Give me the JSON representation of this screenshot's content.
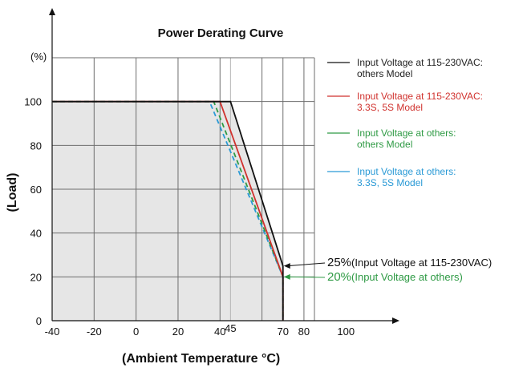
{
  "chart_data": {
    "type": "line",
    "title": "Power Derating Curve",
    "xlabel": "(Ambient Temperature ℃)",
    "xlabel_main": "(Ambient Temperature ",
    "xlabel_unit": "°C)",
    "ylabel": "(Load)",
    "y_unit_label": "(%)",
    "xlim": [
      -40,
      85
    ],
    "ylim": [
      0,
      120
    ],
    "x_ticks": [
      {
        "value": -40,
        "label": "-40"
      },
      {
        "value": -20,
        "label": "-20"
      },
      {
        "value": 0,
        "label": "0"
      },
      {
        "value": 20,
        "label": "20"
      },
      {
        "value": 40,
        "label": "40"
      },
      {
        "value": 45,
        "label": "45"
      },
      {
        "value": 70,
        "label": "70"
      },
      {
        "value": 80,
        "label": "80"
      },
      {
        "value": 100,
        "label": "100"
      }
    ],
    "y_ticks": [
      0,
      20,
      40,
      60,
      80,
      100
    ],
    "x_gridlines": [
      -40,
      -20,
      0,
      20,
      40,
      45,
      60,
      70,
      80
    ],
    "y_gridlines": [
      20,
      40,
      60,
      80,
      100,
      120
    ],
    "grid": true,
    "legend_position": "right",
    "series": [
      {
        "name": "Input Voltage at 115-230VAC: others Model",
        "legend_lines": [
          "Input Voltage at 115-230VAC:",
          "others Model"
        ],
        "color": "#111111",
        "dash": false,
        "x": [
          -40,
          45,
          70,
          70
        ],
        "y": [
          100,
          100,
          25,
          0
        ]
      },
      {
        "name": "Input Voltage at 115-230VAC: 3.3S, 5S Model",
        "legend_lines": [
          "Input Voltage at 115-230VAC:",
          "3.3S, 5S Model"
        ],
        "color": "#d0312d",
        "dash": false,
        "x": [
          -40,
          40,
          70,
          70
        ],
        "y": [
          100,
          100,
          20,
          0
        ]
      },
      {
        "name": "Input Voltage at others: others Model",
        "legend_lines": [
          "Input Voltage at others:",
          "others Model"
        ],
        "color": "#2e9a44",
        "dash": true,
        "x": [
          -40,
          37,
          70,
          70
        ],
        "y": [
          100,
          100,
          20,
          0
        ]
      },
      {
        "name": "Input Voltage at others: 3.3S, 5S Model",
        "legend_lines": [
          "Input Voltage at others:",
          "3.3S, 5S Model"
        ],
        "color": "#2a9ad6",
        "dash": true,
        "x": [
          -40,
          35,
          70,
          70
        ],
        "y": [
          100,
          100,
          20,
          0
        ]
      }
    ],
    "annotations": [
      {
        "big": "25%",
        "small": "(Input Voltage at 115-230VAC)",
        "x": 70,
        "y": 25,
        "color": "#111111"
      },
      {
        "big": "20%",
        "small": "(Input Voltage at others)",
        "x": 70,
        "y": 20,
        "color": "#2e9a44"
      }
    ]
  }
}
